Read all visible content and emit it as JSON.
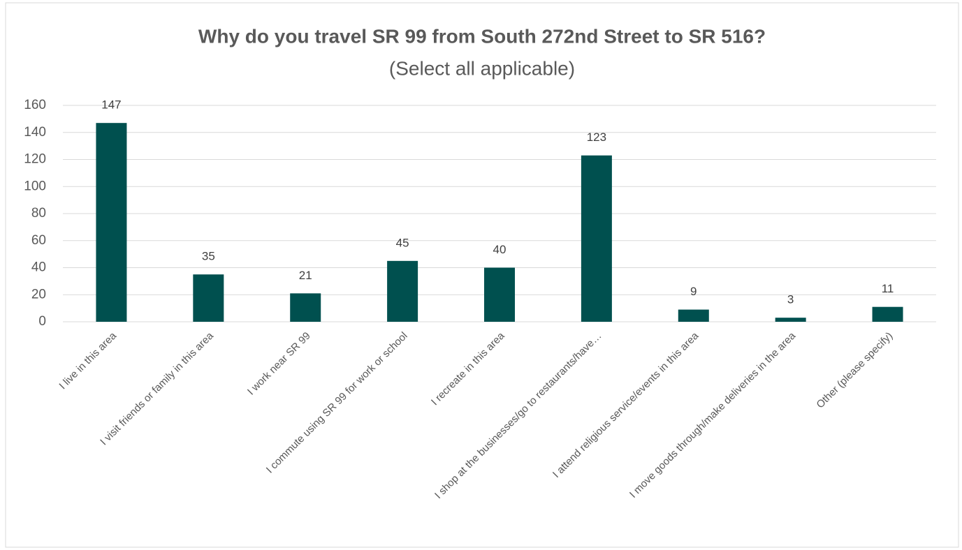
{
  "chart_data": {
    "type": "bar",
    "title": "Why do you travel SR 99 from South 272nd Street to SR 516?",
    "subtitle": "(Select all applicable)",
    "categories": [
      "I live in this area",
      "I visit friends or family in this area",
      "I work near SR 99",
      "I commute using SR 99 for work or school",
      "I recreate in this area",
      "I shop at the businesses/go to restaurants/have…",
      "I attend religious service/events in this area",
      "I move goods through/make deliveries in the area",
      "Other (please specify)"
    ],
    "values": [
      147,
      35,
      21,
      45,
      40,
      123,
      9,
      3,
      11
    ],
    "color": "#00504f",
    "ylim": [
      0,
      160
    ],
    "yticks": [
      0,
      20,
      40,
      60,
      80,
      100,
      120,
      140,
      160
    ],
    "grid": true
  }
}
